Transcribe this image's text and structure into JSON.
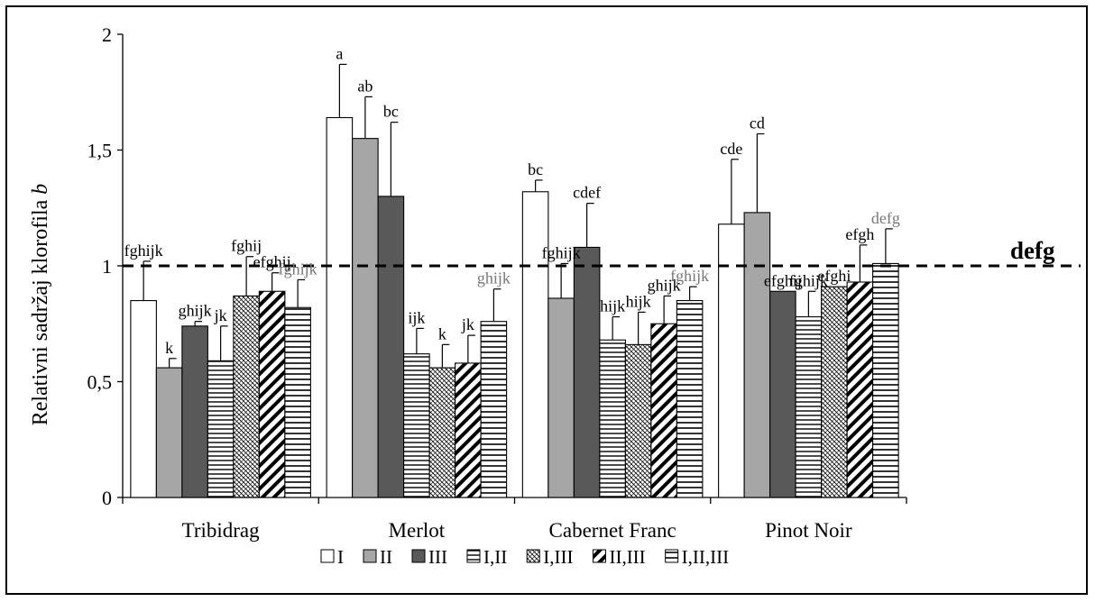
{
  "chart_data": {
    "type": "bar",
    "title": "",
    "xlabel": "",
    "ylabel": "Relativni sadržaj klorofila b",
    "ylabel_prefix": "Relativni sadržaj klorofila ",
    "ylabel_italic": "b",
    "ylim": [
      0,
      2
    ],
    "yticks": [
      "0",
      "0,5",
      "1",
      "1,5",
      "2"
    ],
    "ytick_values": [
      0,
      0.5,
      1,
      1.5,
      2
    ],
    "grid": false,
    "legend_position": "bottom",
    "categories": [
      "Tribidrag",
      "Merlot",
      "Cabernet Franc",
      "Pinot Noir"
    ],
    "reference_line": {
      "value": 1.0,
      "style": "dashed",
      "label": "defg"
    },
    "series": [
      {
        "name": "I",
        "pattern": "white",
        "values": [
          0.85,
          1.64,
          1.32,
          1.18
        ],
        "errors": [
          0.17,
          0.23,
          0.05,
          0.28
        ],
        "labels": [
          "fghijk",
          "a",
          "bc",
          "cde"
        ]
      },
      {
        "name": "II",
        "pattern": "lightgray",
        "values": [
          0.56,
          1.55,
          0.86,
          1.23
        ],
        "errors": [
          0.04,
          0.18,
          0.15,
          0.34
        ],
        "labels": [
          "k",
          "ab",
          "fghijk",
          "cd"
        ]
      },
      {
        "name": "III",
        "pattern": "darkgray",
        "values": [
          0.74,
          1.3,
          1.08,
          0.89
        ],
        "errors": [
          0.02,
          0.32,
          0.19,
          0.0
        ],
        "labels": [
          "ghijk",
          "bc",
          "cdef",
          "efghij"
        ]
      },
      {
        "name": "I,II",
        "pattern": "horizontal",
        "values": [
          0.59,
          0.62,
          0.68,
          0.78
        ],
        "errors": [
          0.15,
          0.11,
          0.1,
          0.11
        ],
        "labels": [
          "jk",
          "ijk",
          "hijk",
          "fghijk"
        ]
      },
      {
        "name": "I,III",
        "pattern": "crosshatch",
        "values": [
          0.87,
          0.56,
          0.66,
          0.91
        ],
        "errors": [
          0.17,
          0.1,
          0.14,
          0.0
        ],
        "labels": [
          "fghij",
          "k",
          "hijk",
          "efghi"
        ]
      },
      {
        "name": "II,III",
        "pattern": "diagonal",
        "values": [
          0.89,
          0.58,
          0.75,
          0.93
        ],
        "errors": [
          0.08,
          0.12,
          0.12,
          0.16
        ],
        "labels": [
          "efghij",
          "jk",
          "ghijk",
          "efgh"
        ]
      },
      {
        "name": "I,II,III",
        "pattern": "horizontal-dense",
        "values": [
          0.82,
          0.76,
          0.85,
          1.01
        ],
        "errors": [
          0.12,
          0.14,
          0.06,
          0.15
        ],
        "labels": [
          "fghijk",
          "ghijk",
          "fghijk",
          "defg"
        ],
        "label_color": "#777777"
      }
    ]
  }
}
